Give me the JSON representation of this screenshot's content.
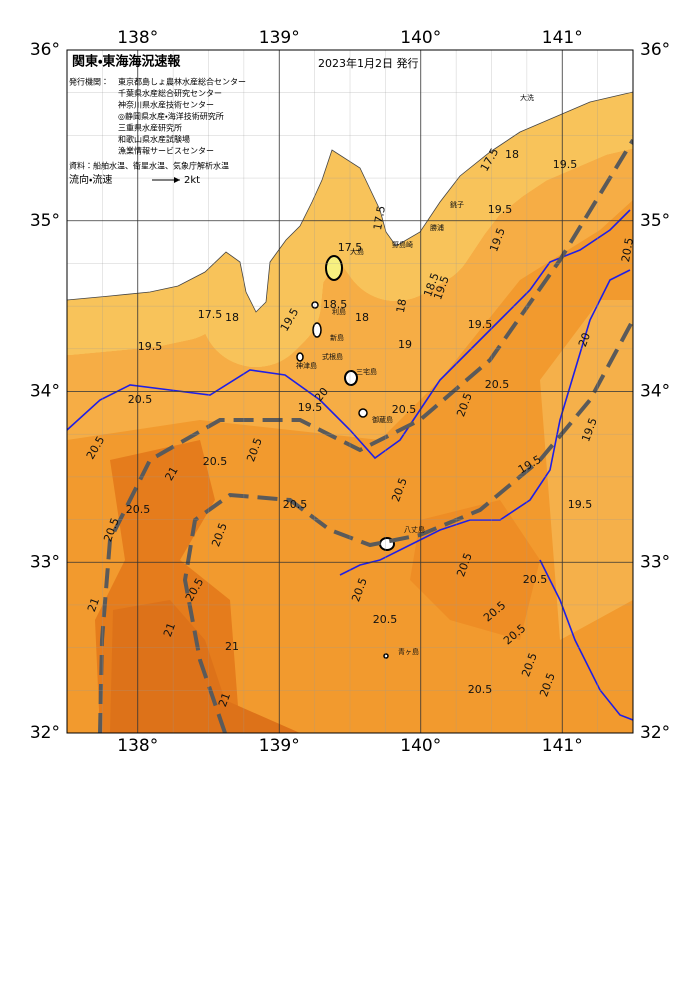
{
  "header": {
    "title": "関東・東海海況速報",
    "date": "2023年1月2日 発行"
  },
  "issuers": {
    "label": "発行機関：",
    "names": [
      "東京都島しょ農林水産総合センター",
      "千葉県水産総合研究センター",
      "神奈川県水産技術センター",
      "◎静岡県水産・海洋技術研究所",
      "三重県水産研究所",
      "和歌山県水産試験場",
      "漁業情報サービスセンター"
    ]
  },
  "source": "資料：船舶水温、衛星水温、気象庁解析水温",
  "legend": {
    "label": "流向・流速",
    "speed": "2kt"
  },
  "map": {
    "lon_ticks": [
      {
        "value": 138,
        "label": "138°"
      },
      {
        "value": 139,
        "label": "139°"
      },
      {
        "value": 140,
        "label": "140°"
      },
      {
        "value": 141,
        "label": "141°"
      }
    ],
    "lat_ticks": [
      {
        "value": 36,
        "label": "36°"
      },
      {
        "value": 35,
        "label": "35°"
      },
      {
        "value": 34,
        "label": "34°"
      },
      {
        "value": 33,
        "label": "33°"
      },
      {
        "value": 32,
        "label": "32°"
      }
    ],
    "contour_labels": [
      "20.5",
      "20.5",
      "19.5",
      "17.5",
      "18",
      "19.5",
      "18.5",
      "18",
      "17.5",
      "17.5",
      "18",
      "19",
      "18.5",
      "19.5",
      "19.5",
      "19.5",
      "19.5",
      "17.5",
      "18",
      "19.5",
      "20.5",
      "20.5",
      "20.5",
      "20.5",
      "21",
      "20.5",
      "20.5",
      "20.5",
      "19.5",
      "20",
      "20.5",
      "19.5",
      "19.5",
      "19.5",
      "20",
      "20.5",
      "20.5",
      "20.5",
      "20.5",
      "20.5",
      "20.5",
      "20.5",
      "20.5",
      "20.5",
      "20.5",
      "20.5",
      "20.5",
      "21",
      "21",
      "21",
      "21",
      "20.5"
    ],
    "places": [
      "大島",
      "利島",
      "新島",
      "式根島",
      "神津島",
      "三宅島",
      "御蔵島",
      "八丈島",
      "青ヶ島",
      "野島崎",
      "銚子",
      "大洗",
      "勝浦"
    ]
  }
}
